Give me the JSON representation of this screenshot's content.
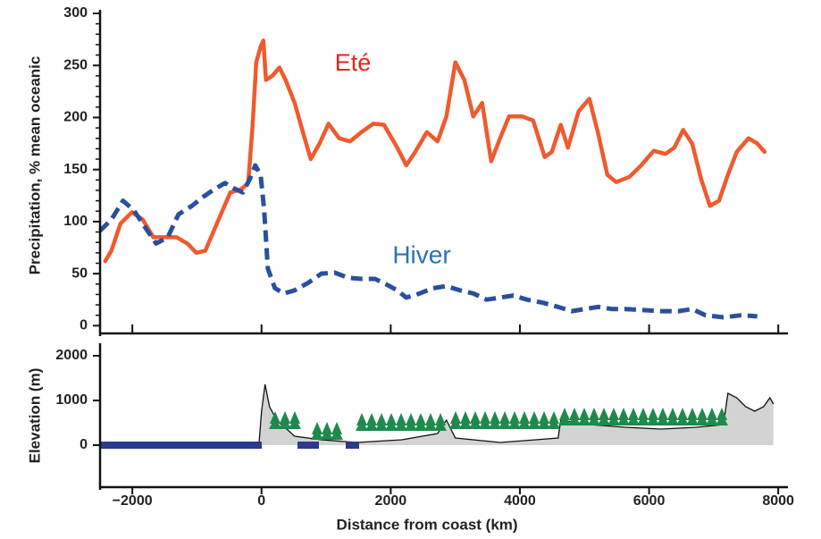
{
  "chart_data": [
    {
      "type": "line",
      "ylabel": "Precipitation, % mean oceanic",
      "xlim": [
        -2500,
        8150
      ],
      "ylim": [
        -10,
        300
      ],
      "yticks": [
        0,
        50,
        100,
        150,
        200,
        250,
        300
      ],
      "series": [
        {
          "name": "Eté",
          "color": "#ef5a2e",
          "dashed": false,
          "x": [
            -2420,
            -2324,
            -2185,
            -2005,
            -1840,
            -1674,
            -1494,
            -1314,
            -1148,
            -1010,
            -871,
            -664,
            -484,
            -318,
            -207,
            -138,
            -83,
            -14,
            28,
            69,
            166,
            277,
            373,
            512,
            650,
            761,
            899,
            1037,
            1203,
            1369,
            1549,
            1729,
            1895,
            2102,
            2241,
            2379,
            2559,
            2725,
            2863,
            3001,
            3140,
            3278,
            3416,
            3555,
            3693,
            3831,
            4039,
            4205,
            4384,
            4495,
            4633,
            4744,
            4910,
            5076,
            5214,
            5353,
            5491,
            5698,
            5878,
            6072,
            6252,
            6390,
            6528,
            6667,
            6805,
            6943,
            7082,
            7220,
            7358,
            7538,
            7676,
            7787
          ],
          "values": [
            62,
            72,
            98,
            109,
            102,
            85,
            85,
            85,
            79,
            70,
            72,
            102,
            128,
            131,
            137,
            193,
            253,
            268,
            274,
            236,
            240,
            248,
            236,
            214,
            184,
            160,
            175,
            194,
            180,
            177,
            186,
            194,
            193,
            171,
            154,
            167,
            186,
            177,
            201,
            253,
            236,
            201,
            214,
            158,
            180,
            201,
            201,
            197,
            162,
            167,
            193,
            171,
            206,
            218,
            184,
            145,
            138,
            143,
            154,
            168,
            165,
            171,
            188,
            175,
            141,
            115,
            120,
            145,
            167,
            180,
            175,
            167
          ]
        },
        {
          "name": "Hiver",
          "color": "#2a4f9e",
          "dashed": true,
          "x": [
            -2503,
            -2324,
            -2144,
            -1978,
            -1798,
            -1632,
            -1452,
            -1286,
            -1079,
            -899,
            -733,
            -567,
            -429,
            -290,
            -180,
            -97,
            -14,
            41,
            97,
            207,
            346,
            512,
            719,
            927,
            1134,
            1342,
            1549,
            1757,
            1923,
            2102,
            2241,
            2448,
            2656,
            2863,
            3071,
            3278,
            3485,
            3693,
            3900,
            4108,
            4357,
            4592,
            4799,
            5007,
            5214,
            5422,
            5629,
            5906,
            6183,
            6459,
            6667,
            6874,
            7151,
            7427,
            7676
          ],
          "values": [
            91,
            102,
            120,
            111,
            94,
            79,
            85,
            107,
            115,
            124,
            131,
            137,
            132,
            128,
            141,
            154,
            145,
            111,
            55,
            36,
            31,
            34,
            41,
            50,
            51,
            46,
            45,
            45,
            40,
            34,
            27,
            31,
            36,
            38,
            34,
            31,
            25,
            27,
            29,
            25,
            22,
            18,
            14,
            16,
            18,
            16,
            16,
            15,
            14,
            14,
            16,
            10,
            8,
            10,
            9
          ]
        }
      ]
    },
    {
      "type": "area",
      "ylabel": "Elevation (m)",
      "xlabel": "Distance from coast (km)",
      "xlim": [
        -2500,
        8150
      ],
      "ylim": [
        -1000,
        2200
      ],
      "yticks": [
        0,
        1000,
        2000
      ],
      "xticks": [
        {
          "value": -2000,
          "label": "−2000"
        },
        0,
        2000,
        4000,
        6000,
        8000
      ],
      "color": "#d3d3d3",
      "x": [
        -41,
        0,
        55,
        124,
        235,
        512,
        927,
        1480,
        2172,
        2725,
        2863,
        3001,
        3693,
        4246,
        4592,
        4633,
        5076,
        5629,
        6183,
        6736,
        7151,
        7220,
        7358,
        7496,
        7635,
        7773,
        7870,
        7925
      ],
      "values": [
        0,
        760,
        1360,
        860,
        560,
        200,
        120,
        60,
        120,
        260,
        560,
        160,
        60,
        120,
        160,
        560,
        460,
        400,
        360,
        400,
        460,
        1160,
        1060,
        860,
        760,
        860,
        1060,
        920
      ]
    }
  ]
}
